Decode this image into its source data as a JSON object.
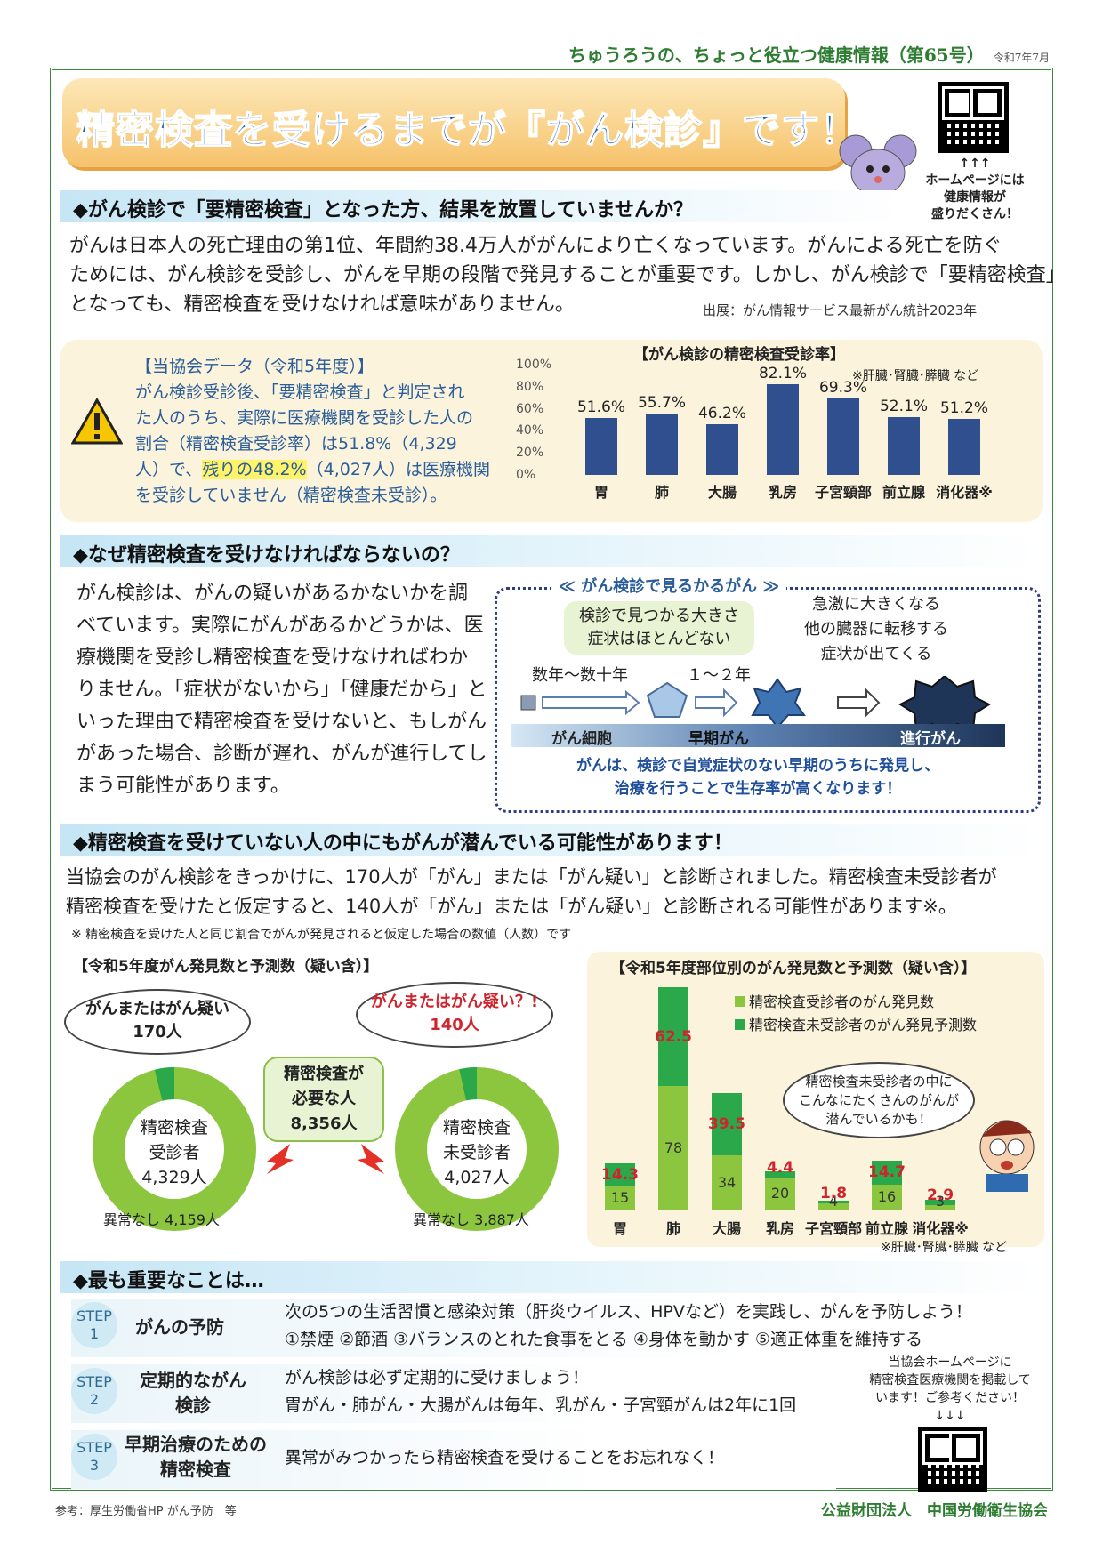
{
  "header": {
    "series": "ちゅうろうの、ちょっと役立つ健康情報（第65号）",
    "date": "令和7年7月"
  },
  "title": "精密検査を受けるまでが『がん検診』です！",
  "qr_top": {
    "arrows": "↑↑↑",
    "caption_line1": "ホームページには",
    "caption_line2": "健康情報が",
    "caption_line3": "盛りだくさん！"
  },
  "section1": {
    "heading": "◆がん検診で「要精密検査」となった方、結果を放置していませんか？",
    "line1": "がんは日本人の死亡理由の第1位、年間約38.4万人ががんにより亡くなっています。がんによる死亡を防ぐ",
    "line2": "ためには、がん検診を受診し、がんを早期の段階で発見することが重要です。しかし、がん検診で「要精密検査」",
    "line3": "となっても、精密検査を受けなければ意味がありません。",
    "source": "出展：がん情報サービス最新がん統計2023年"
  },
  "data_box": {
    "title": "【当協会データ（令和5年度）】",
    "line1": "がん検診受診後、「要精密検査」と判定され",
    "line2": "た人のうち、実際に医療機関を受診した人の",
    "line3": "割合（精密検査受診率）は51.8%（4,329",
    "line4a": "人）で、",
    "line4b": "残りの48.2%",
    "line4c": "（4,027人）は医療機関",
    "line5": "を受診していません（精密検査未受診）。"
  },
  "chart1": {
    "title": "【がん検診の精密検査受診率】",
    "note": "※肝臓･腎臓･膵臓 など",
    "yticks": [
      "100%",
      "80%",
      "60%",
      "40%",
      "20%",
      "0%"
    ]
  },
  "chart_data": [
    {
      "type": "bar",
      "title": "【がん検診の精密検査受診率】",
      "categories": [
        "胃",
        "肺",
        "大腸",
        "乳房",
        "子宮頸部",
        "前立腺",
        "消化器※"
      ],
      "values": [
        51.6,
        55.7,
        46.2,
        82.1,
        69.3,
        52.1,
        51.2
      ],
      "value_labels": [
        "51.6%",
        "55.7%",
        "46.2%",
        "82.1%",
        "69.3%",
        "52.1%",
        "51.2%"
      ],
      "ylim": [
        0,
        100
      ],
      "color": "#2f4f8f"
    },
    {
      "type": "bar",
      "title": "【令和5年度部位別のがん発見数と予測数（疑い含）】",
      "categories": [
        "胃",
        "肺",
        "大腸",
        "乳房",
        "子宮頸部",
        "前立腺",
        "消化器※"
      ],
      "series": [
        {
          "name": "精密検査受診者のがん発見数",
          "values": [
            15,
            78,
            34,
            20,
            4,
            16,
            3
          ],
          "color": "#8cc63f"
        },
        {
          "name": "精密検査未受診者のがん発見予測数",
          "values": [
            14.3,
            62.5,
            39.5,
            4.4,
            1.8,
            14.7,
            2.9
          ],
          "color": "#2aa84a"
        }
      ],
      "stacked": true
    },
    {
      "type": "pie",
      "title": "精密検査受診者",
      "values": [
        4159,
        170
      ],
      "labels": [
        "異常なし 4,159人",
        "170人"
      ]
    },
    {
      "type": "pie",
      "title": "精密検査未受診者",
      "values": [
        3887,
        140
      ],
      "labels": [
        "異常なし 3,887人",
        "140人"
      ]
    }
  ],
  "section2": {
    "heading": "◆なぜ精密検査を受けなければならないの？",
    "lines": [
      "がん検診は、がんの疑いがあるかないかを調",
      "べています。実際にがんがあるかどうかは、医",
      "療機関を受診し精密検査を受けなければわか",
      "りません。「症状がないから」「健康だから」と",
      "いった理由で精密検査を受けないと、もしがん",
      "があった場合、診断が遅れ、がんが進行してし",
      "まう可能性があります。"
    ],
    "diagram": {
      "title": "≪ がん検診で見るかるがん ≫",
      "bubble1": "検診で見つかる大きさ",
      "bubble2": "症状はほとんどない",
      "right1": "急激に大きくなる",
      "right2": "他の臓器に転移する",
      "right3": "症状が出てくる",
      "span1": "数年～数十年",
      "span2": "１～２年",
      "stage1": "がん細胞",
      "stage2": "早期がん",
      "stage3": "進行がん",
      "foot1": "がんは、検診で自覚症状のない早期のうちに発見し、",
      "foot2": "治療を行うことで生存率が高くなります！"
    }
  },
  "section3": {
    "heading": "◆精密検査を受けていない人の中にもがんが潜んでいる可能性があります！",
    "line1": "当協会のがん検診をきっかけに、170人が「がん」または「がん疑い」と診断されました。精密検査未受診者が",
    "line2": "精密検査を受けたと仮定すると、140人が「がん」または「がん疑い」と診断される可能性があります※。",
    "note": "※ 精密検査を受けた人と同じ割合でがんが発見されると仮定した場合の数値（人数）です",
    "left_title": "【令和5年度がん発見数と予測数（疑い含）】",
    "bubble_left1": "がんまたはがん疑い",
    "bubble_left2": "170人",
    "bubble_right1": "がんまたはがん疑い？!",
    "bubble_right2": "140人",
    "center1": "精密検査が",
    "center2": "必要な人",
    "center3": "8,356人",
    "donut_left1": "精密検査",
    "donut_left2": "受診者",
    "donut_left3": "4,329人",
    "donut_left_normal": "異常なし 4,159人",
    "donut_right1": "精密検査",
    "donut_right2": "未受診者",
    "donut_right3": "4,027人",
    "donut_right_normal": "異常なし 3,887人",
    "right_title": "【令和5年度部位別のがん発見数と予測数（疑い含）】",
    "legend1": "精密検査受診者のがん発見数",
    "legend2": "精密検査未受診者のがん発見予測数",
    "speech1": "精密検査未受診者の中に",
    "speech2": "こんなにたくさんのがんが",
    "speech3": "潜んでいるかも！",
    "note2": "※肝臓･腎臓･膵臓 など"
  },
  "section4": {
    "heading": "◆最も重要なことは…",
    "steps": [
      {
        "tag": "STEP",
        "num": "1",
        "label": "がんの予防",
        "text1": "次の5つの生活習慣と感染対策（肝炎ウイルス、HPVなど）を実践し、がんを予防しよう！",
        "text2": "①禁煙 ②節酒 ③バランスのとれた食事をとる ④身体を動かす ⑤適正体重を維持する"
      },
      {
        "tag": "STEP",
        "num": "2",
        "label": "定期的ながん検診",
        "text1": "がん検診は必ず定期的に受けましょう！",
        "text2": "胃がん・肺がん・大腸がんは毎年、乳がん・子宮頸がんは2年に1回"
      },
      {
        "tag": "STEP",
        "num": "3",
        "label": "早期治療のための精密検査",
        "text1": "異常がみつかったら精密検査を受けることをお忘れなく！",
        "text2": ""
      }
    ],
    "qr_note1": "当協会ホームページに",
    "qr_note2": "精密検査医療機関を掲載して",
    "qr_note3": "います！ご参考ください！",
    "qr_arrows": "↓↓↓"
  },
  "footer": {
    "ref": "参考：厚生労働省HP がん予防　等",
    "org": "公益財団法人　中国労働衛生協会"
  }
}
